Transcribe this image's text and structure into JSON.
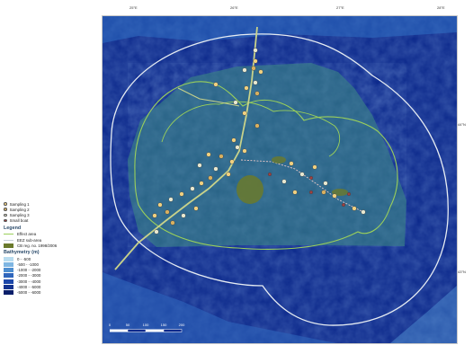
{
  "map": {
    "lon_ticks_top": [
      "25°E",
      "26°E",
      "27°E",
      "28°E"
    ],
    "lat_ticks_right": [
      "44°N",
      "43°N"
    ],
    "scale": {
      "ticks": [
        "0",
        "50",
        "100",
        "150",
        "200"
      ]
    },
    "colors": {
      "deep": "#0d2a8c",
      "mid": "#1c47aa",
      "shelf": "#2f6fc4",
      "effect_area": "#2f6e86",
      "line_white": "#e6ecf2",
      "line_green": "#9bd05a",
      "dump_fill": "#6b7a2c"
    }
  },
  "legend": {
    "samples": [
      {
        "label": "Sampling 1",
        "color": "#f0d080"
      },
      {
        "label": "Sampling 2",
        "color": "#d8b060"
      },
      {
        "label": "Sampling 3",
        "color": "#e8e8d0"
      },
      {
        "label": "Small boat",
        "color": "#a04040"
      }
    ],
    "title": "Legend",
    "layers": [
      {
        "label": "Effect area",
        "kind": "line",
        "color": "#9bd05a"
      },
      {
        "label": "EEZ sub-area",
        "kind": "line",
        "color": "#e6ecf2"
      },
      {
        "label": "CB reg. no. 1998/2006",
        "kind": "fill",
        "color": "#6b7a2c"
      }
    ],
    "bathy_title": "Bathymetry (m)",
    "bathy": [
      {
        "label": "0 - -500",
        "color": "#b8dcf0"
      },
      {
        "label": "-500 - -1000",
        "color": "#7fb6e2"
      },
      {
        "label": "-1000 - -2000",
        "color": "#4e8ed0"
      },
      {
        "label": "-2000 - -3000",
        "color": "#2f66bc"
      },
      {
        "label": "-3000 - -4000",
        "color": "#1c47aa"
      },
      {
        "label": "-4000 - -5000",
        "color": "#13338f"
      },
      {
        "label": "-5000 - -6000",
        "color": "#0a1f6a"
      }
    ]
  }
}
